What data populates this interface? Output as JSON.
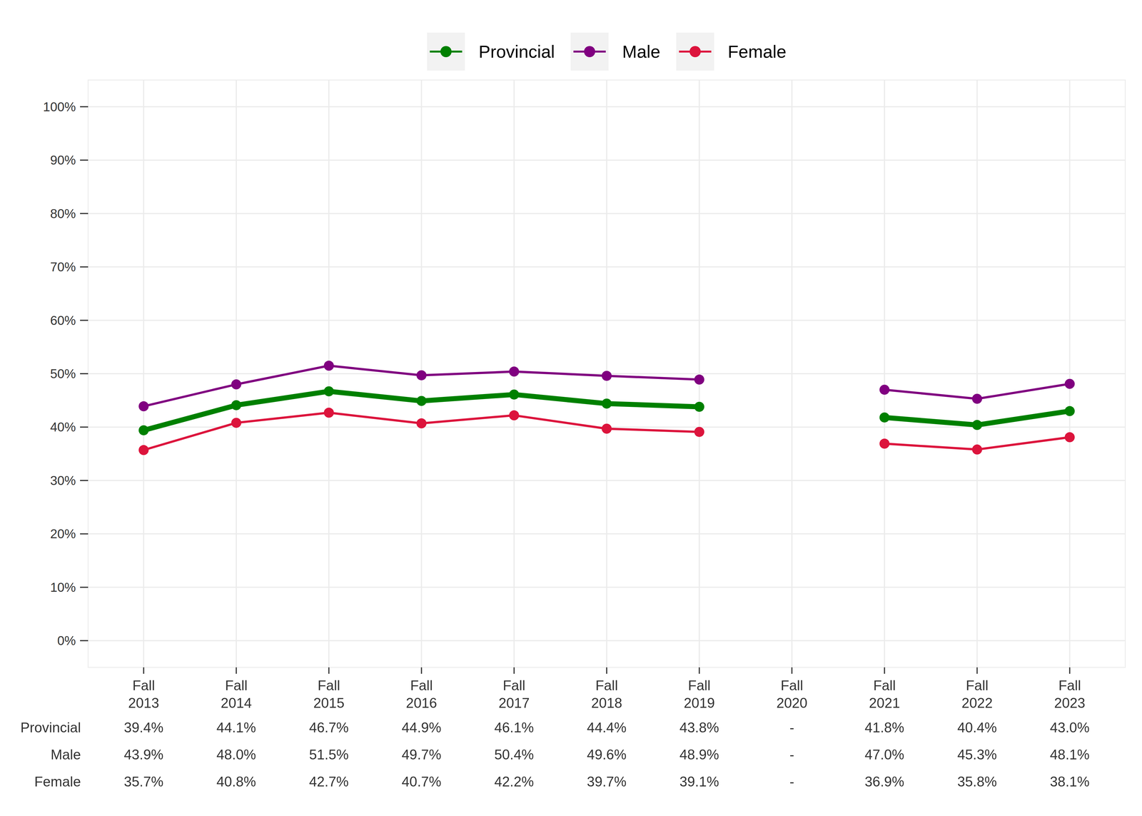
{
  "chart_data": {
    "type": "line",
    "categories": [
      "Fall 2013",
      "Fall 2014",
      "Fall 2015",
      "Fall 2016",
      "Fall 2017",
      "Fall 2018",
      "Fall 2019",
      "Fall 2020",
      "Fall 2021",
      "Fall 2022",
      "Fall 2023"
    ],
    "series": [
      {
        "name": "Provincial",
        "color": "#008000",
        "marker": "circle",
        "line_style": "solid",
        "values": [
          39.4,
          44.1,
          46.7,
          44.9,
          46.1,
          44.4,
          43.8,
          null,
          41.8,
          40.4,
          43.0
        ],
        "value_labels": [
          "39.4%",
          "44.1%",
          "46.7%",
          "44.9%",
          "46.1%",
          "44.4%",
          "43.8%",
          "-",
          "41.8%",
          "40.4%",
          "43.0%"
        ]
      },
      {
        "name": "Male",
        "color": "#800080",
        "marker": "circle",
        "line_style": "solid",
        "values": [
          43.9,
          48.0,
          51.5,
          49.7,
          50.4,
          49.6,
          48.9,
          null,
          47.0,
          45.3,
          48.1
        ],
        "value_labels": [
          "43.9%",
          "48.0%",
          "51.5%",
          "49.7%",
          "50.4%",
          "49.6%",
          "48.9%",
          "-",
          "47.0%",
          "45.3%",
          "48.1%"
        ]
      },
      {
        "name": "Female",
        "color": "#DC143C",
        "marker": "circle",
        "line_style": "solid",
        "values": [
          35.7,
          40.8,
          42.7,
          40.7,
          42.2,
          39.7,
          39.1,
          null,
          36.9,
          35.8,
          38.1
        ],
        "value_labels": [
          "35.7%",
          "40.8%",
          "42.7%",
          "40.7%",
          "42.2%",
          "39.7%",
          "39.1%",
          "-",
          "36.9%",
          "35.8%",
          "38.1%"
        ]
      }
    ],
    "ylim": [
      -5,
      105
    ],
    "yticks": [
      {
        "value": 0,
        "label": "0%"
      },
      {
        "value": 10,
        "label": "10%"
      },
      {
        "value": 20,
        "label": "20%"
      },
      {
        "value": 30,
        "label": "30%"
      },
      {
        "value": 40,
        "label": "40%"
      },
      {
        "value": 50,
        "label": "50%"
      },
      {
        "value": 60,
        "label": "60%"
      },
      {
        "value": 70,
        "label": "70%"
      },
      {
        "value": 80,
        "label": "80%"
      },
      {
        "value": 90,
        "label": "90%"
      },
      {
        "value": 100,
        "label": "100%"
      }
    ],
    "grid": true,
    "legend": "top"
  }
}
